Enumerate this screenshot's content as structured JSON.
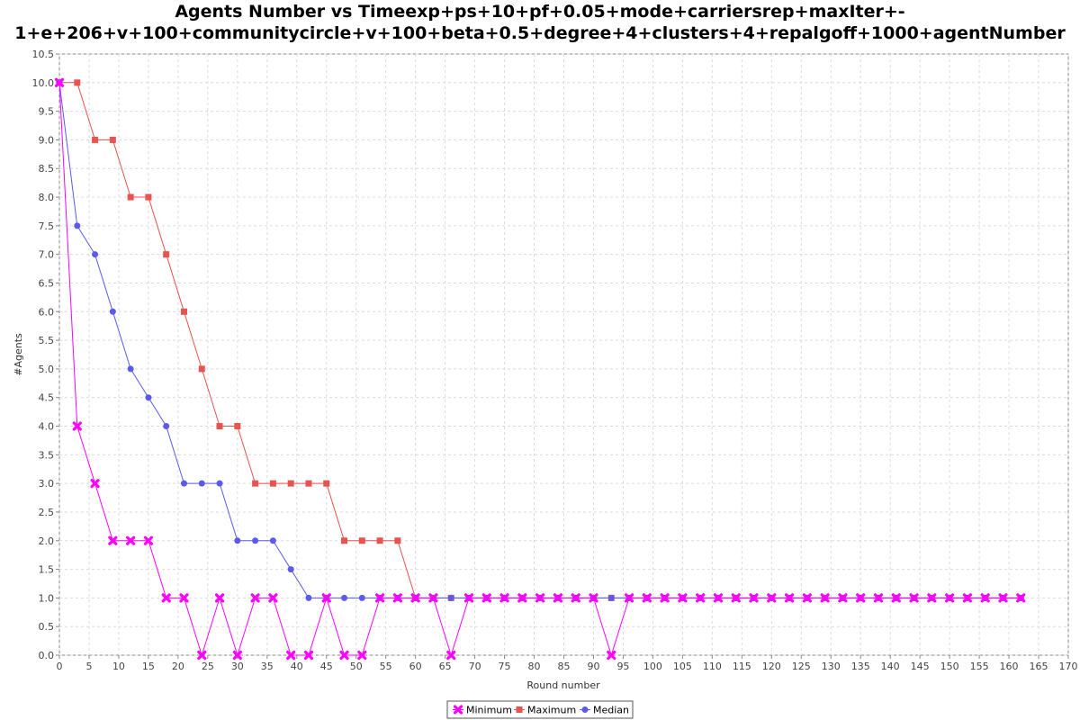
{
  "chart_data": {
    "type": "line",
    "title_line1": "Agents Number vs Timeexp+ps+10+pf+0.05+mode+carriersrep+maxIter+-",
    "title_line2": "1+e+206+v+100+communitycircle+v+100+beta+0.5+degree+4+clusters+4+repalgoff+1000+agentNumber",
    "xlabel": "Round number",
    "ylabel": "#Agents",
    "xlim": [
      0,
      170
    ],
    "ylim": [
      0,
      10.5
    ],
    "x_ticks": [
      0,
      5,
      10,
      15,
      20,
      25,
      30,
      35,
      40,
      45,
      50,
      55,
      60,
      65,
      70,
      75,
      80,
      85,
      90,
      95,
      100,
      105,
      110,
      115,
      120,
      125,
      130,
      135,
      140,
      145,
      150,
      155,
      160,
      165,
      170
    ],
    "x_tick_labels": [
      "0",
      "5",
      "10",
      "15",
      "20",
      "25",
      "30",
      "35",
      "40",
      "45",
      "50",
      "55",
      "60",
      "65",
      "70",
      "75",
      "80",
      "85",
      "90",
      "95",
      "100",
      "105",
      "110",
      "115",
      "120",
      "125",
      "130",
      "135",
      "140",
      "145",
      "150",
      "155",
      "160",
      "165",
      "170"
    ],
    "y_ticks": [
      0,
      0.5,
      1,
      1.5,
      2,
      2.5,
      3,
      3.5,
      4,
      4.5,
      5,
      5.5,
      6,
      6.5,
      7,
      7.5,
      8,
      8.5,
      9,
      9.5,
      10,
      10.5
    ],
    "y_tick_labels": [
      "0.0",
      "0.5",
      "1.0",
      "1.5",
      "2.0",
      "2.5",
      "3.0",
      "3.5",
      "4.0",
      "4.5",
      "5.0",
      "5.5",
      "6.0",
      "6.5",
      "7.0",
      "7.5",
      "8.0",
      "8.5",
      "9.0",
      "9.5",
      "10.0",
      "10.5"
    ],
    "grid": true,
    "legend_position": "bottom-center",
    "x": [
      0,
      3,
      6,
      9,
      12,
      15,
      18,
      21,
      24,
      27,
      30,
      33,
      36,
      39,
      42,
      45,
      48,
      51,
      54,
      57,
      60,
      63,
      66,
      69,
      72,
      75,
      78,
      81,
      84,
      87,
      90,
      93,
      96,
      99,
      102,
      105,
      108,
      111,
      114,
      117,
      120,
      123,
      126,
      129,
      132,
      135,
      138,
      141,
      144,
      147,
      150,
      153,
      156,
      159,
      162
    ],
    "series": [
      {
        "name": "Minimum",
        "color": "#ff00ff",
        "marker": "x",
        "values": [
          10,
          4,
          3,
          2,
          2,
          2,
          1,
          1,
          0,
          1,
          0,
          1,
          1,
          0,
          0,
          1,
          0,
          0,
          1,
          1,
          1,
          1,
          0,
          1,
          1,
          1,
          1,
          1,
          1,
          1,
          1,
          0,
          1,
          1,
          1,
          1,
          1,
          1,
          1,
          1,
          1,
          1,
          1,
          1,
          1,
          1,
          1,
          1,
          1,
          1,
          1,
          1,
          1,
          1,
          1
        ]
      },
      {
        "name": "Maximum",
        "color": "#e8524f",
        "marker": "square",
        "values": [
          10,
          10,
          9,
          9,
          8,
          8,
          7,
          6,
          5,
          4,
          4,
          3,
          3,
          3,
          3,
          3,
          2,
          2,
          2,
          2,
          1,
          1,
          1,
          1,
          1,
          1,
          1,
          1,
          1,
          1,
          1,
          1,
          1,
          1,
          1,
          1,
          1,
          1,
          1,
          1,
          1,
          1,
          1,
          1,
          1,
          1,
          1,
          1,
          1,
          1,
          1,
          1,
          1,
          1,
          1
        ]
      },
      {
        "name": "Median",
        "color": "#5a5aee",
        "marker": "circle",
        "values": [
          10,
          7.5,
          7,
          6,
          5,
          4.5,
          4,
          3,
          3,
          3,
          2,
          2,
          2,
          1.5,
          1,
          1,
          1,
          1,
          1,
          1,
          1,
          1,
          1,
          1,
          1,
          1,
          1,
          1,
          1,
          1,
          1,
          1,
          1,
          1,
          1,
          1,
          1,
          1,
          1,
          1,
          1,
          1,
          1,
          1,
          1,
          1,
          1,
          1,
          1,
          1,
          1,
          1,
          1,
          1,
          1
        ]
      }
    ]
  }
}
